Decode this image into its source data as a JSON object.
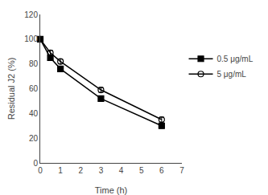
{
  "chart_data": {
    "type": "line",
    "x": [
      0,
      0.5,
      1,
      3,
      6
    ],
    "series": [
      {
        "name": "0.5 μg/mL",
        "color": "black",
        "marker": "square",
        "line_style": "solid",
        "values": [
          100,
          85,
          76,
          52,
          30
        ],
        "yerr": [
          0,
          2,
          2,
          2,
          2
        ]
      },
      {
        "name": "5 μg/mL",
        "color": "black",
        "marker": "circle-open",
        "line_style": "solid",
        "values": [
          100,
          89,
          82,
          59,
          35
        ],
        "yerr": [
          0,
          2,
          2,
          2,
          2
        ]
      }
    ],
    "xlabel": "Time (h)",
    "ylabel": "Residual J2 (%)",
    "xlim": [
      0,
      7
    ],
    "ylim": [
      0,
      120
    ],
    "xticks": [
      0,
      1,
      2,
      3,
      4,
      5,
      6,
      7
    ],
    "yticks": [
      0,
      20,
      40,
      60,
      80,
      100,
      120
    ],
    "grid": false,
    "legend": "right"
  }
}
